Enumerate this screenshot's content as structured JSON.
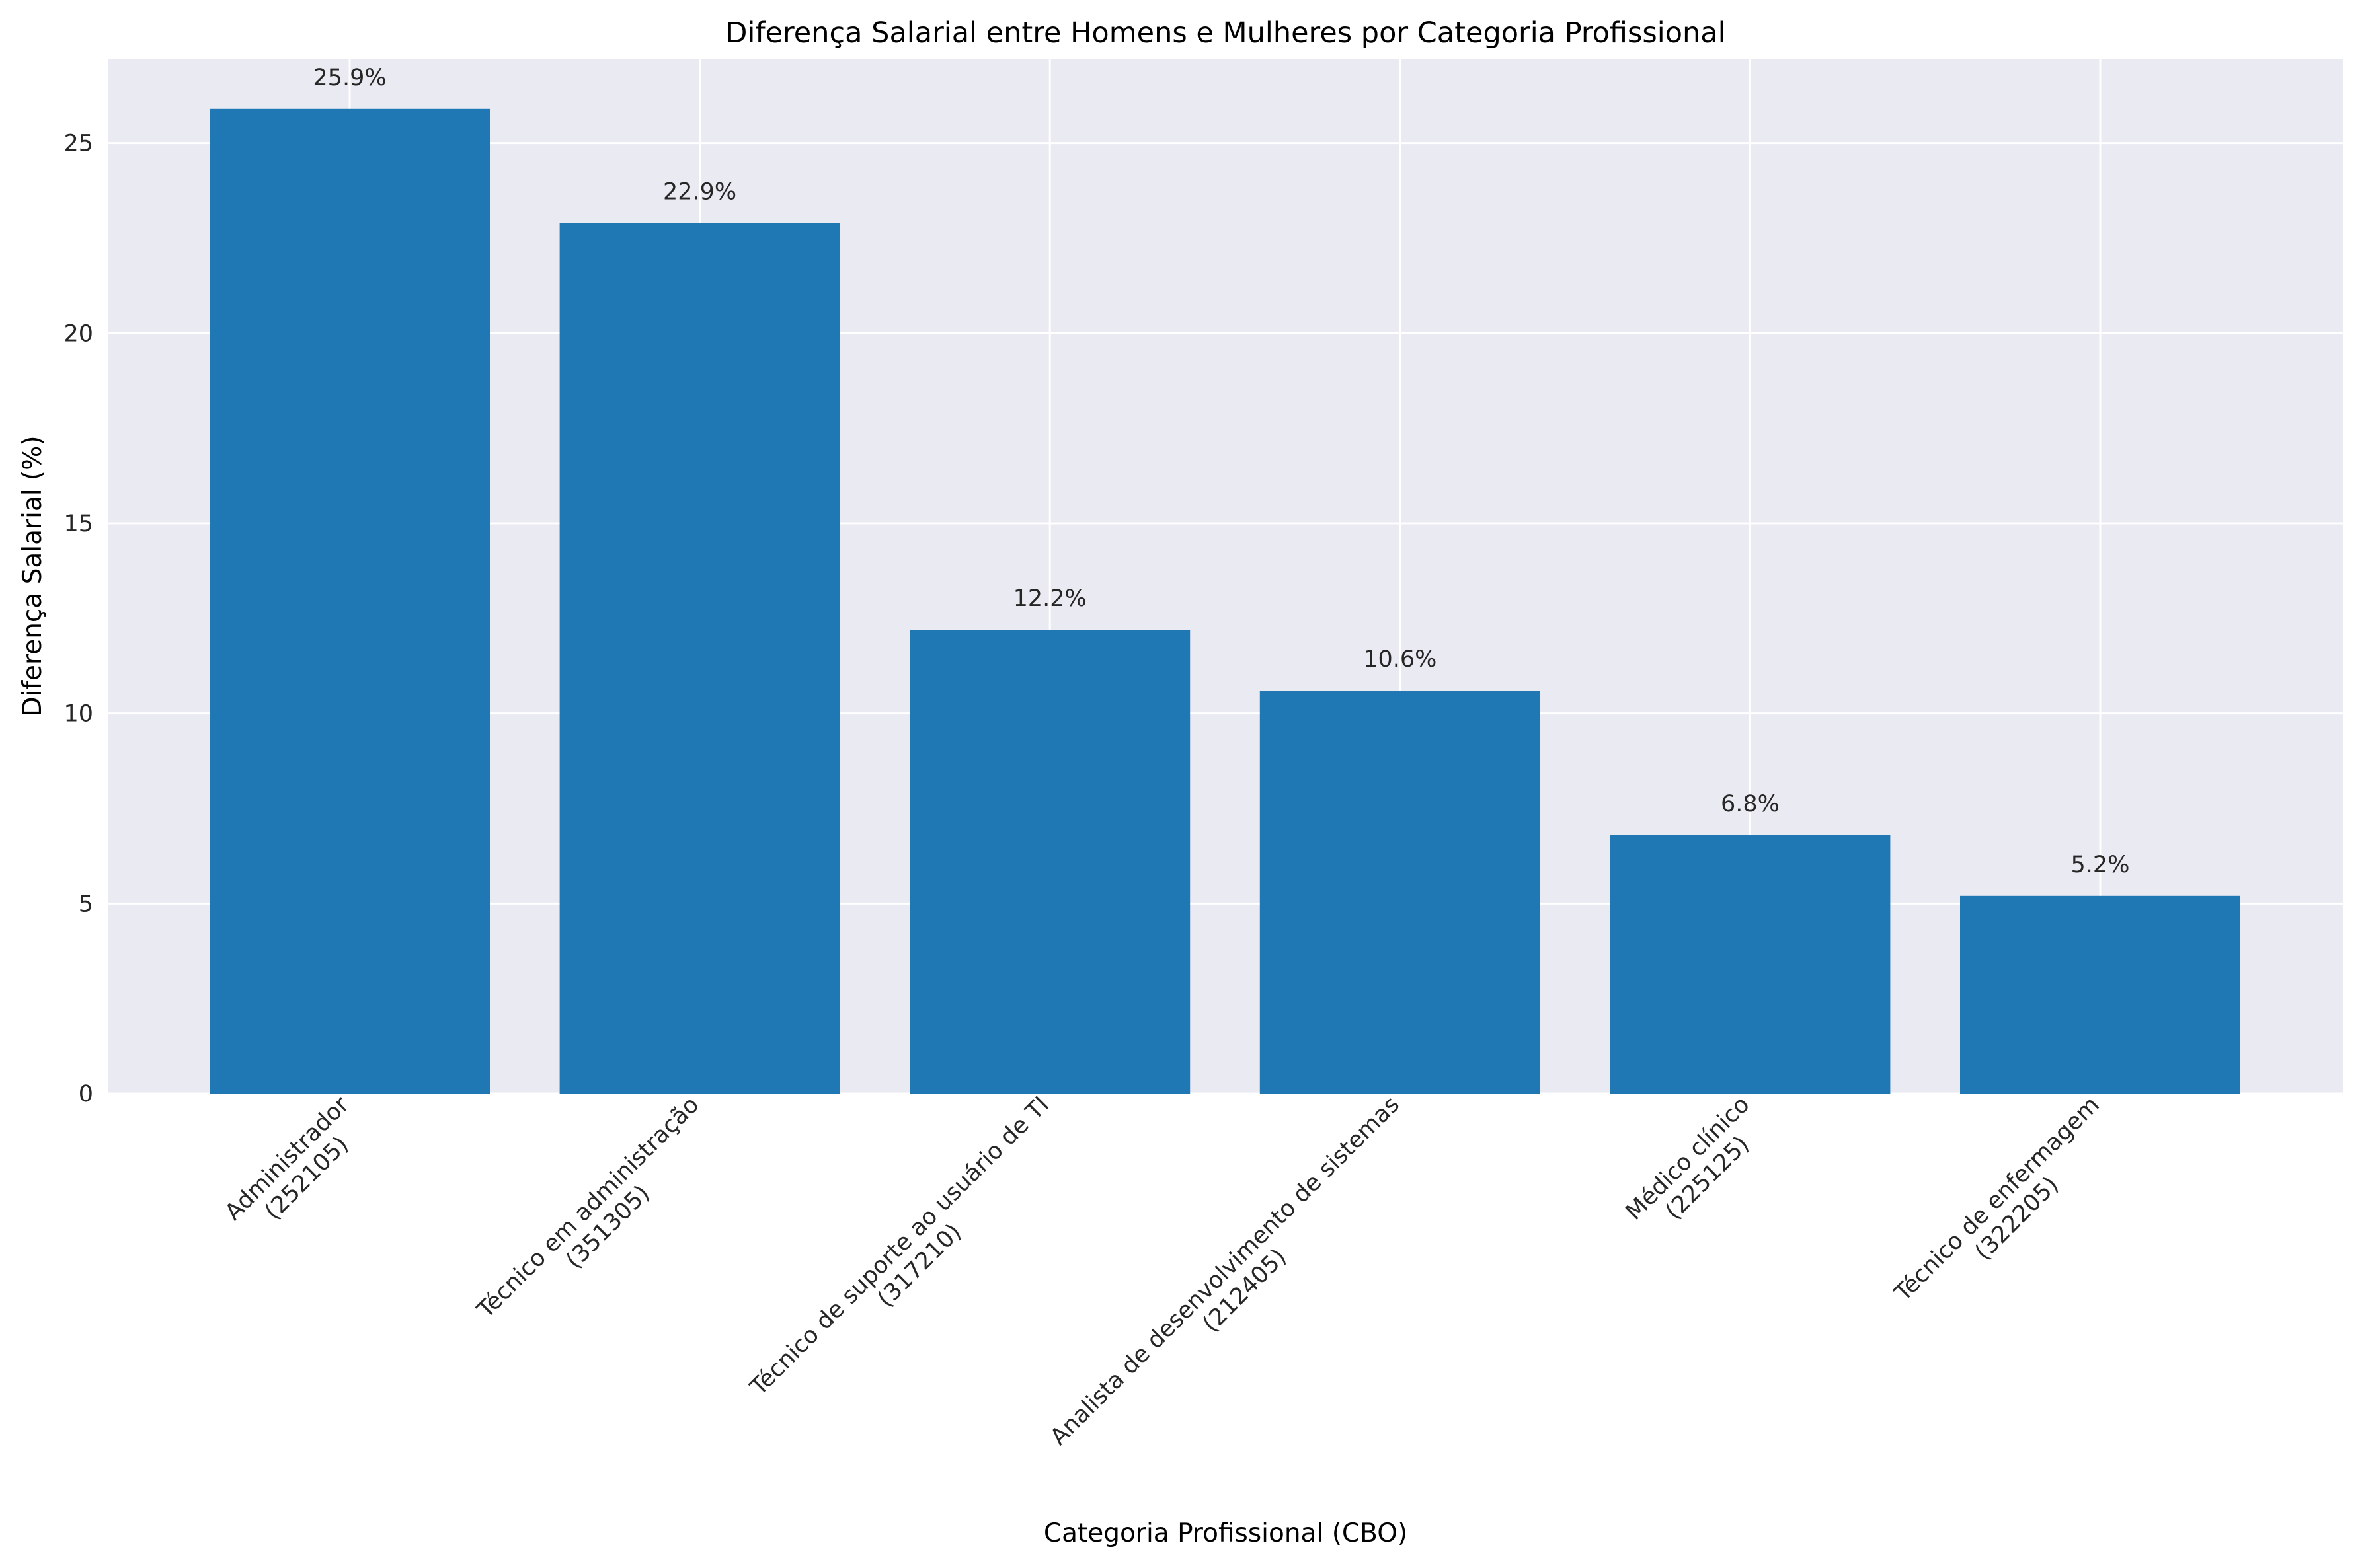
{
  "chart_data": {
    "type": "bar",
    "title": "Diferença Salarial entre Homens e Mulheres por Categoria Profissional",
    "xlabel": "Categoria Profissional (CBO)",
    "ylabel": "Diferença Salarial (%)",
    "ylim": [
      0,
      27.2
    ],
    "yticks": [
      "0",
      "5",
      "10",
      "15",
      "20",
      "25"
    ],
    "grid": true,
    "bar_color": "#1f77b4",
    "background_color": "#eaeaf2",
    "categories": [
      [
        "Administrador",
        "(252105)"
      ],
      [
        "Técnico em administração",
        "(351305)"
      ],
      [
        "Técnico de suporte ao usuário de TI",
        "(317210)"
      ],
      [
        "Analista de desenvolvimento de sistemas",
        "(212405)"
      ],
      [
        "Médico clínico",
        "(225125)"
      ],
      [
        "Técnico de enfermagem",
        "(322205)"
      ]
    ],
    "values": [
      25.9,
      22.9,
      12.2,
      10.6,
      6.8,
      5.2
    ],
    "value_labels": [
      "25.9%",
      "22.9%",
      "12.2%",
      "10.6%",
      "6.8%",
      "5.2%"
    ]
  }
}
